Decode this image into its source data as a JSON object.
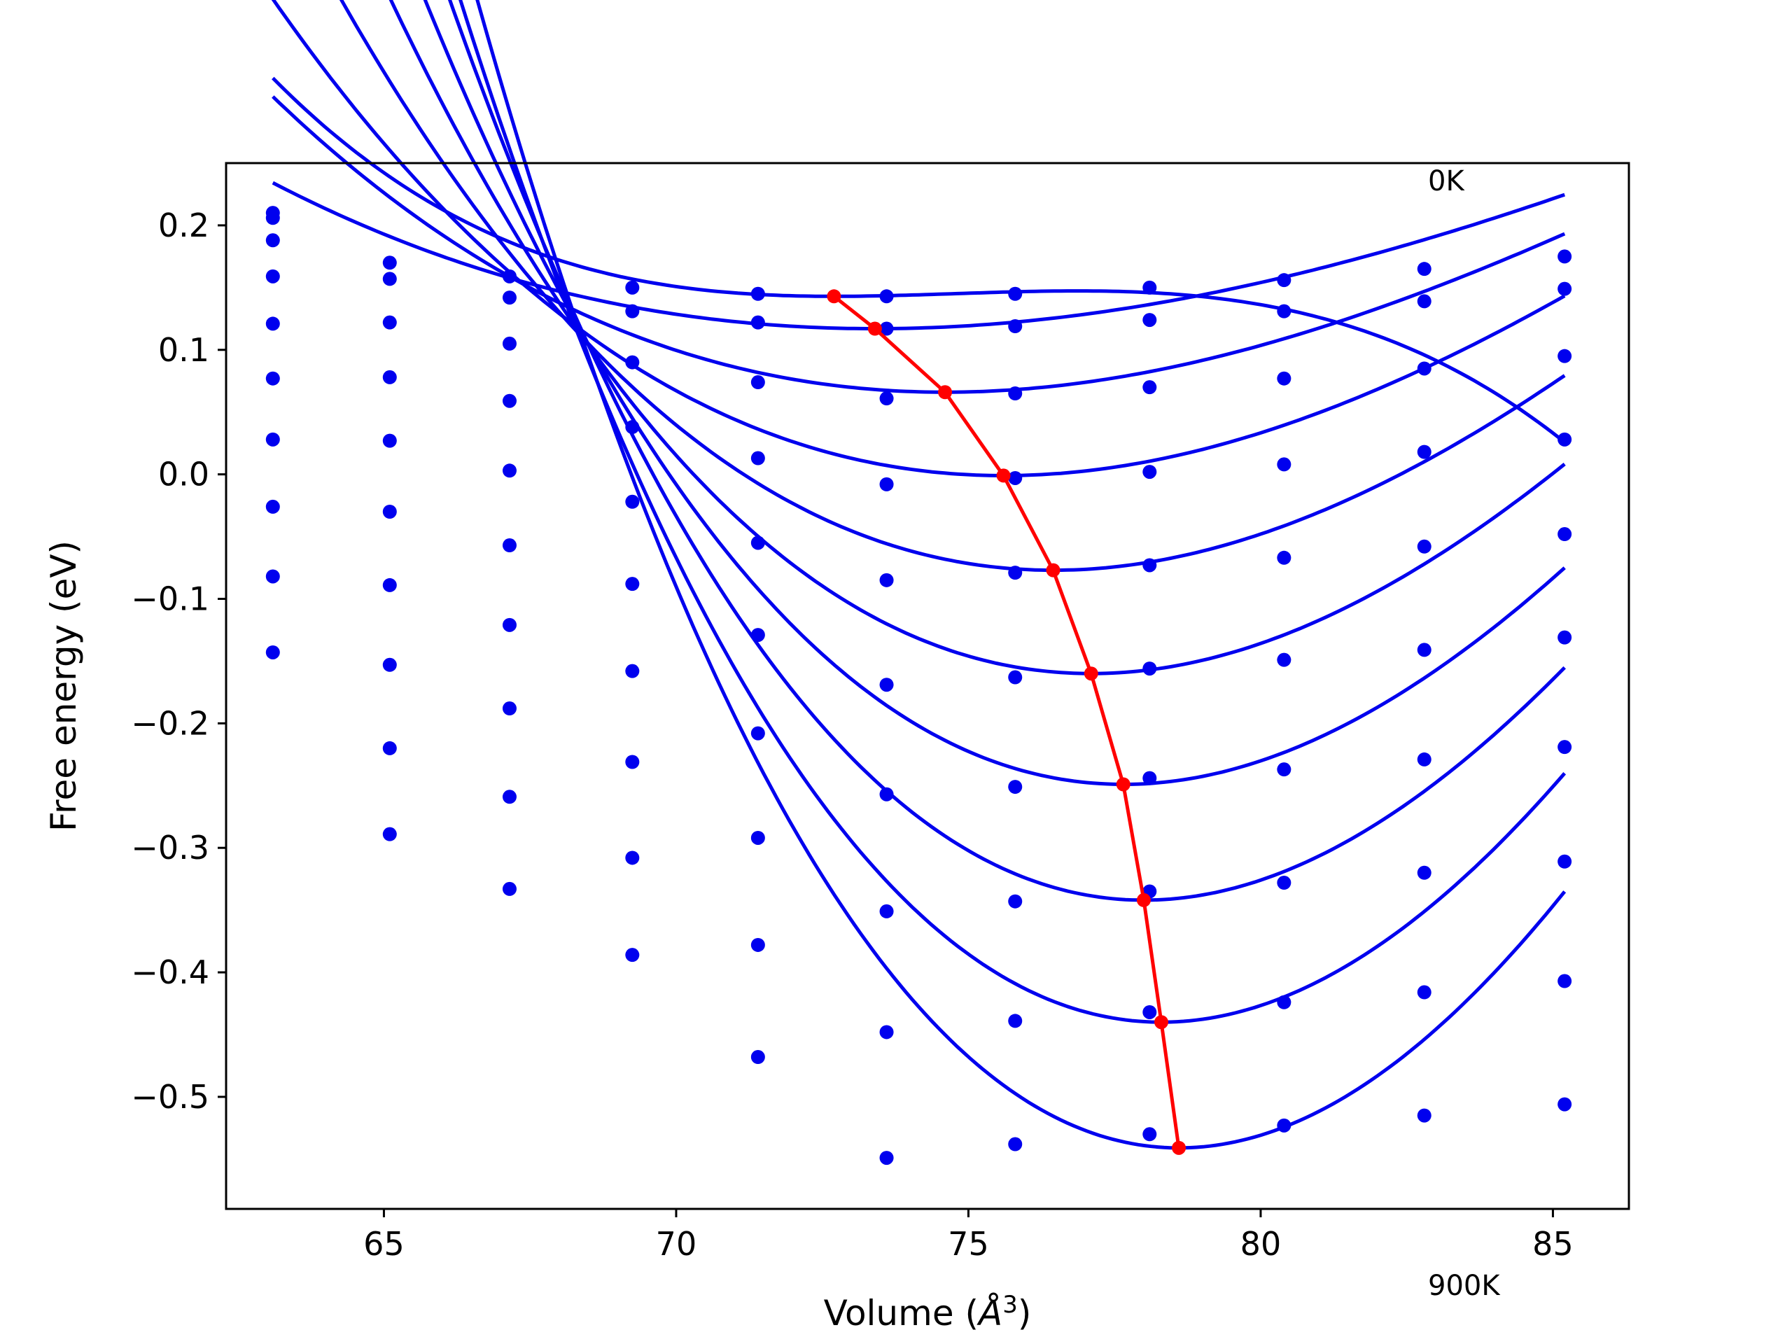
{
  "chart_data": {
    "type": "scatter",
    "title": "",
    "xlabel": "Volume",
    "xlabel_unit": "Å",
    "xlabel_unit_exp": "3",
    "ylabel": "Free energy (eV)",
    "xlim": [
      62.3,
      86.3
    ],
    "ylim": [
      -0.59,
      0.25
    ],
    "xticks": [
      65,
      70,
      75,
      80,
      85
    ],
    "xtick_labels": [
      "65",
      "70",
      "75",
      "80",
      "85"
    ],
    "yticks": [
      0.2,
      0.1,
      0.0,
      -0.1,
      -0.2,
      -0.3,
      -0.4,
      -0.5
    ],
    "ytick_labels": [
      "0.2",
      "0.1",
      "0.0",
      "−0.1",
      "−0.2",
      "−0.3",
      "−0.4",
      "−0.5"
    ],
    "grid": false,
    "annotations": [
      "0K",
      "900K"
    ],
    "colors": {
      "points": "#0000ee",
      "fit": "#0000ee",
      "minimum": "#ff0000"
    },
    "volumes": [
      63.1,
      65.1,
      67.15,
      69.25,
      71.4,
      73.6,
      75.8,
      78.1,
      80.4,
      82.8,
      85.2
    ],
    "temperatures_points": [
      [
        0.21,
        0.17,
        0.159,
        0.15,
        0.145,
        0.143,
        0.145,
        0.15,
        0.156,
        0.165,
        0.175
      ],
      [
        0.206,
        0.157,
        0.142,
        0.131,
        0.122,
        0.117,
        0.119,
        0.124,
        0.131,
        0.139,
        0.149
      ],
      [
        0.188,
        0.122,
        0.105,
        0.09,
        0.074,
        0.061,
        0.065,
        0.07,
        0.077,
        0.085,
        0.095
      ],
      [
        0.159,
        0.078,
        0.059,
        0.038,
        0.013,
        -0.008,
        -0.003,
        0.002,
        0.008,
        0.018,
        0.028
      ],
      [
        0.121,
        0.027,
        0.003,
        -0.022,
        -0.055,
        -0.085,
        -0.079,
        -0.073,
        -0.067,
        -0.058,
        -0.048
      ],
      [
        0.077,
        -0.03,
        -0.057,
        -0.088,
        -0.129,
        -0.169,
        -0.163,
        -0.156,
        -0.149,
        -0.141,
        -0.131
      ],
      [
        0.028,
        -0.089,
        -0.121,
        -0.158,
        -0.208,
        -0.257,
        -0.251,
        -0.244,
        -0.237,
        -0.229,
        -0.219
      ],
      [
        -0.026,
        -0.153,
        -0.188,
        -0.231,
        -0.292,
        -0.351,
        -0.343,
        -0.335,
        -0.328,
        -0.32,
        -0.311
      ],
      [
        -0.082,
        -0.22,
        -0.259,
        -0.308,
        -0.378,
        -0.448,
        -0.439,
        -0.432,
        -0.424,
        -0.416,
        -0.407
      ],
      [
        -0.143,
        -0.289,
        -0.333,
        -0.386,
        -0.468,
        -0.549,
        -0.538,
        -0.53,
        -0.523,
        -0.515,
        -0.506
      ]
    ],
    "fit_curves": [
      {
        "c": [
          0.143,
          72.7,
          0.00075,
          0.00012
        ]
      },
      {
        "c": [
          0.117,
          73.4,
          0.00095,
          1.5e-05
        ]
      },
      {
        "c": [
          0.066,
          74.6,
          0.00145,
          3e-05
        ]
      },
      {
        "c": [
          -0.001,
          75.6,
          0.00195,
          4e-05
        ]
      },
      {
        "c": [
          -0.077,
          76.45,
          0.00248,
          5e-05
        ]
      },
      {
        "c": [
          -0.16,
          77.1,
          0.00305,
          6e-05
        ]
      },
      {
        "c": [
          -0.249,
          77.65,
          0.00358,
          7e-05
        ]
      },
      {
        "c": [
          -0.342,
          78.0,
          0.00418,
          8e-05
        ]
      },
      {
        "c": [
          -0.44,
          78.3,
          0.00475,
          8e-05
        ]
      },
      {
        "c": [
          -0.541,
          78.6,
          0.00532,
          9e-05
        ]
      }
    ],
    "minima_line": {
      "x": [
        72.7,
        73.4,
        74.6,
        75.6,
        76.45,
        77.1,
        77.65,
        78.0,
        78.3,
        78.6
      ],
      "y": [
        0.143,
        0.117,
        0.066,
        -0.001,
        -0.077,
        -0.16,
        -0.249,
        -0.342,
        -0.44,
        -0.541
      ]
    }
  }
}
